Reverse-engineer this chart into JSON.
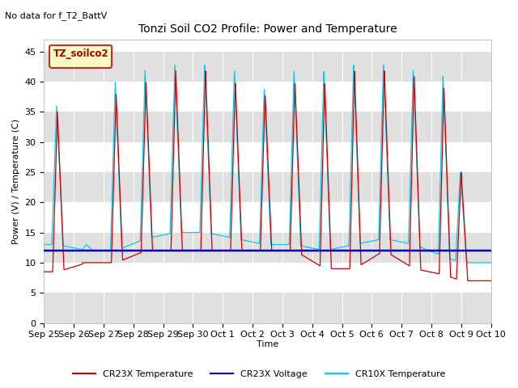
{
  "title": "Tonzi Soil CO2 Profile: Power and Temperature",
  "no_data_text": "No data for f_T2_BattV",
  "ylabel": "Power (V) / Temperature (C)",
  "xlabel": "Time",
  "ylim": [
    0,
    47
  ],
  "yticks": [
    0,
    5,
    10,
    15,
    20,
    25,
    30,
    35,
    40,
    45
  ],
  "legend_box_label": "TZ_soilco2",
  "cr23x_voltage_value": 12.0,
  "cr23x_color": "#cc0000",
  "cr23x_voltage_color": "#0000bb",
  "cr10x_color": "#00ccee",
  "background_color": "#ffffff",
  "band_color": "#e0e0e0",
  "legend_entries": [
    "CR23X Temperature",
    "CR23X Voltage",
    "CR10X Temperature"
  ],
  "peak_days": [
    0.45,
    1.45,
    2.42,
    3.42,
    4.42,
    5.42,
    6.42,
    7.42,
    8.42,
    9.42,
    10.42,
    11.42,
    12.42,
    13.42,
    14.0
  ],
  "peaks_cr23x": [
    35,
    10,
    38,
    40,
    42,
    42,
    40,
    38,
    40,
    40,
    42,
    42,
    41,
    39,
    25
  ],
  "peaks_cr10x": [
    36,
    13,
    40,
    42,
    43,
    43,
    42,
    39,
    42,
    42,
    43,
    43,
    42,
    41,
    25
  ],
  "bases_cr23x": [
    8.5,
    10,
    10,
    12,
    12,
    12,
    12,
    12,
    12,
    9,
    9,
    12,
    9,
    8,
    7
  ],
  "bases_cr10x": [
    13,
    12,
    12,
    14,
    15,
    15,
    14,
    13,
    13,
    12,
    13,
    14,
    13,
    11,
    10
  ]
}
